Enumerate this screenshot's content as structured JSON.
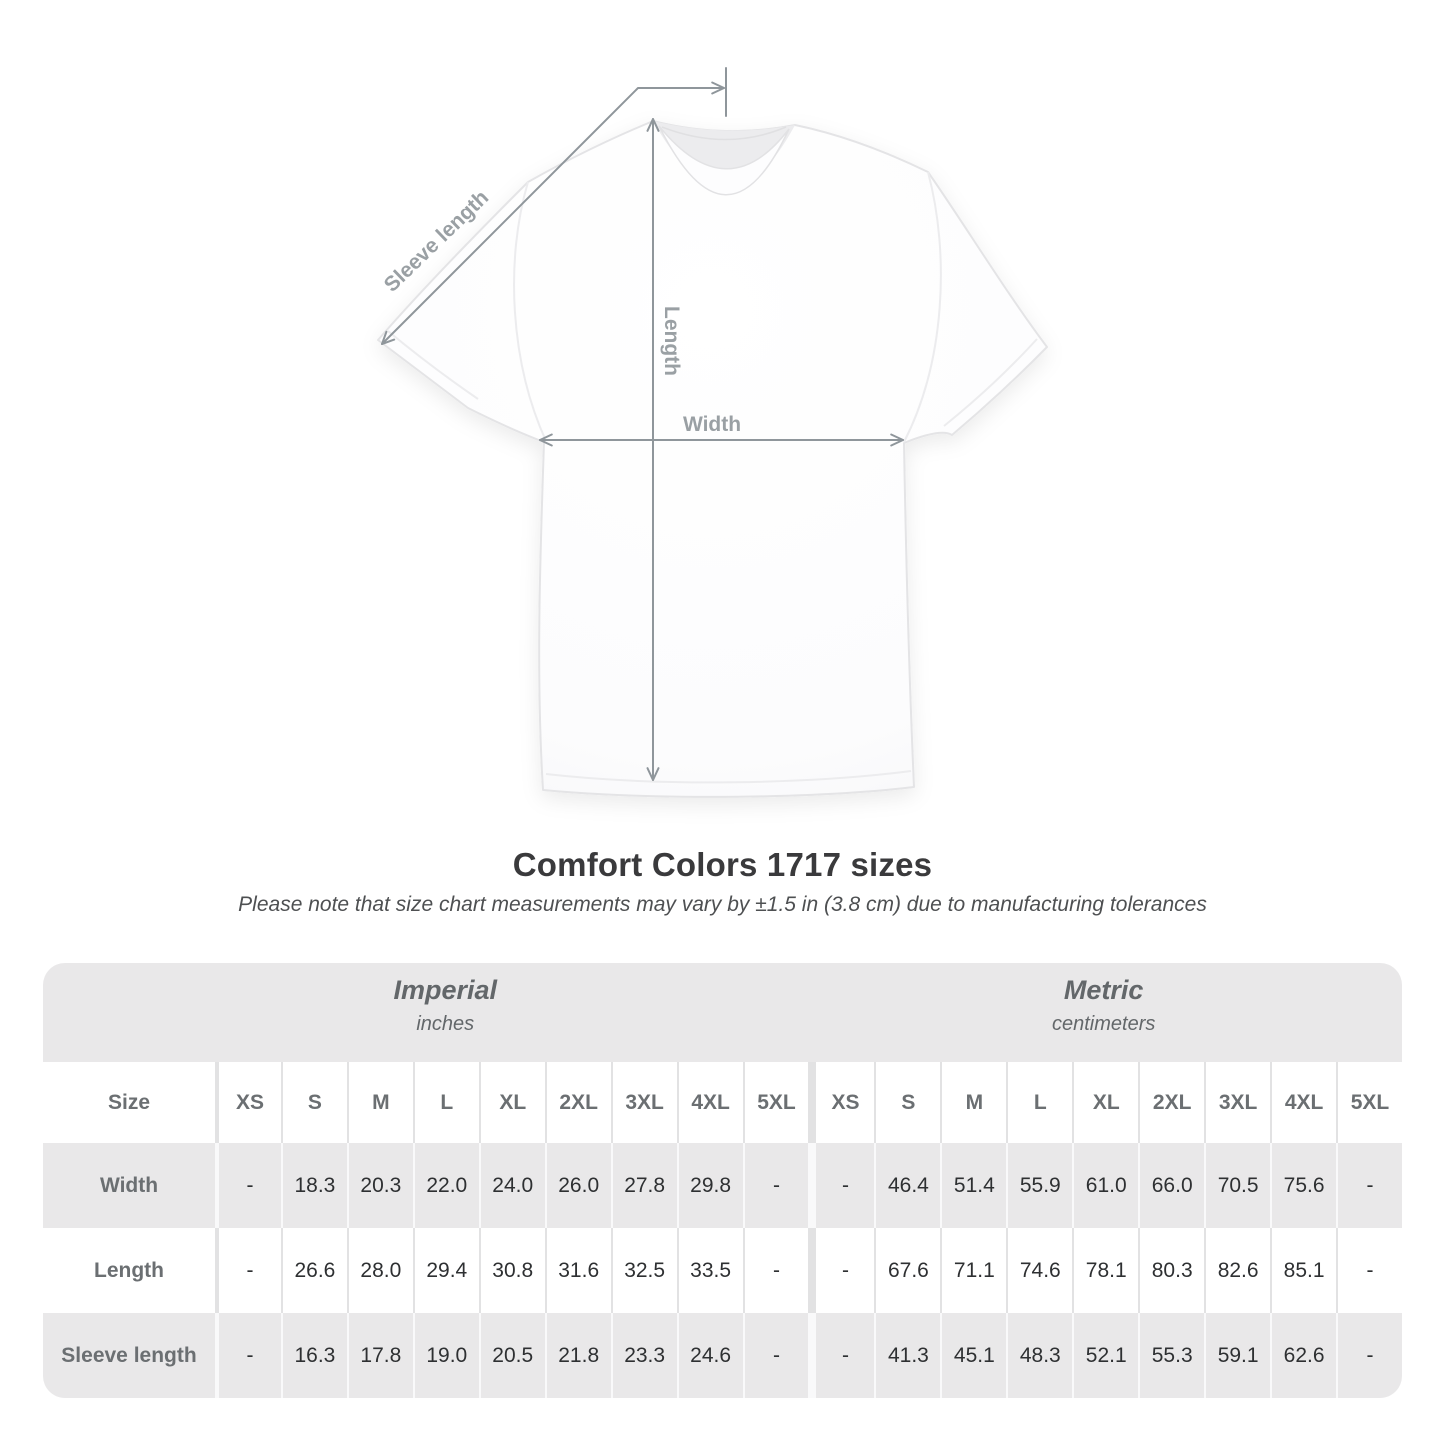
{
  "diagram": {
    "labels": {
      "sleeve_length": "Sleeve length",
      "length": "Length",
      "width": "Width"
    },
    "line_color": "#8f969b",
    "label_color": "#9aa0a4"
  },
  "heading": {
    "title": "Comfort Colors 1717 sizes",
    "subtitle": "Please note that size chart measurements may vary by ±1.5 in (3.8 cm) due to manufacturing tolerances"
  },
  "table": {
    "groups": [
      {
        "label": "Imperial",
        "sublabel": "inches"
      },
      {
        "label": "Metric",
        "sublabel": "centimeters"
      }
    ],
    "size_header": "Size",
    "sizes": [
      "XS",
      "S",
      "M",
      "L",
      "XL",
      "2XL",
      "3XL",
      "4XL",
      "5XL"
    ],
    "rows": [
      {
        "label": "Width",
        "imperial": [
          "-",
          "18.3",
          "20.3",
          "22.0",
          "24.0",
          "26.0",
          "27.8",
          "29.8",
          "-"
        ],
        "metric": [
          "-",
          "46.4",
          "51.4",
          "55.9",
          "61.0",
          "66.0",
          "70.5",
          "75.6",
          "-"
        ]
      },
      {
        "label": "Length",
        "imperial": [
          "-",
          "26.6",
          "28.0",
          "29.4",
          "30.8",
          "31.6",
          "32.5",
          "33.5",
          "-"
        ],
        "metric": [
          "-",
          "67.6",
          "71.1",
          "74.6",
          "78.1",
          "80.3",
          "82.6",
          "85.1",
          "-"
        ]
      },
      {
        "label": "Sleeve length",
        "imperial": [
          "-",
          "16.3",
          "17.8",
          "19.0",
          "20.5",
          "21.8",
          "23.3",
          "24.6",
          "-"
        ],
        "metric": [
          "-",
          "41.3",
          "45.1",
          "48.3",
          "52.1",
          "55.3",
          "59.1",
          "62.6",
          "-"
        ]
      }
    ],
    "colors": {
      "stripe": "#e9e8e9",
      "band": "#e9e8e9",
      "header_text": "#6b6f72",
      "data_text": "#2e3032"
    }
  }
}
